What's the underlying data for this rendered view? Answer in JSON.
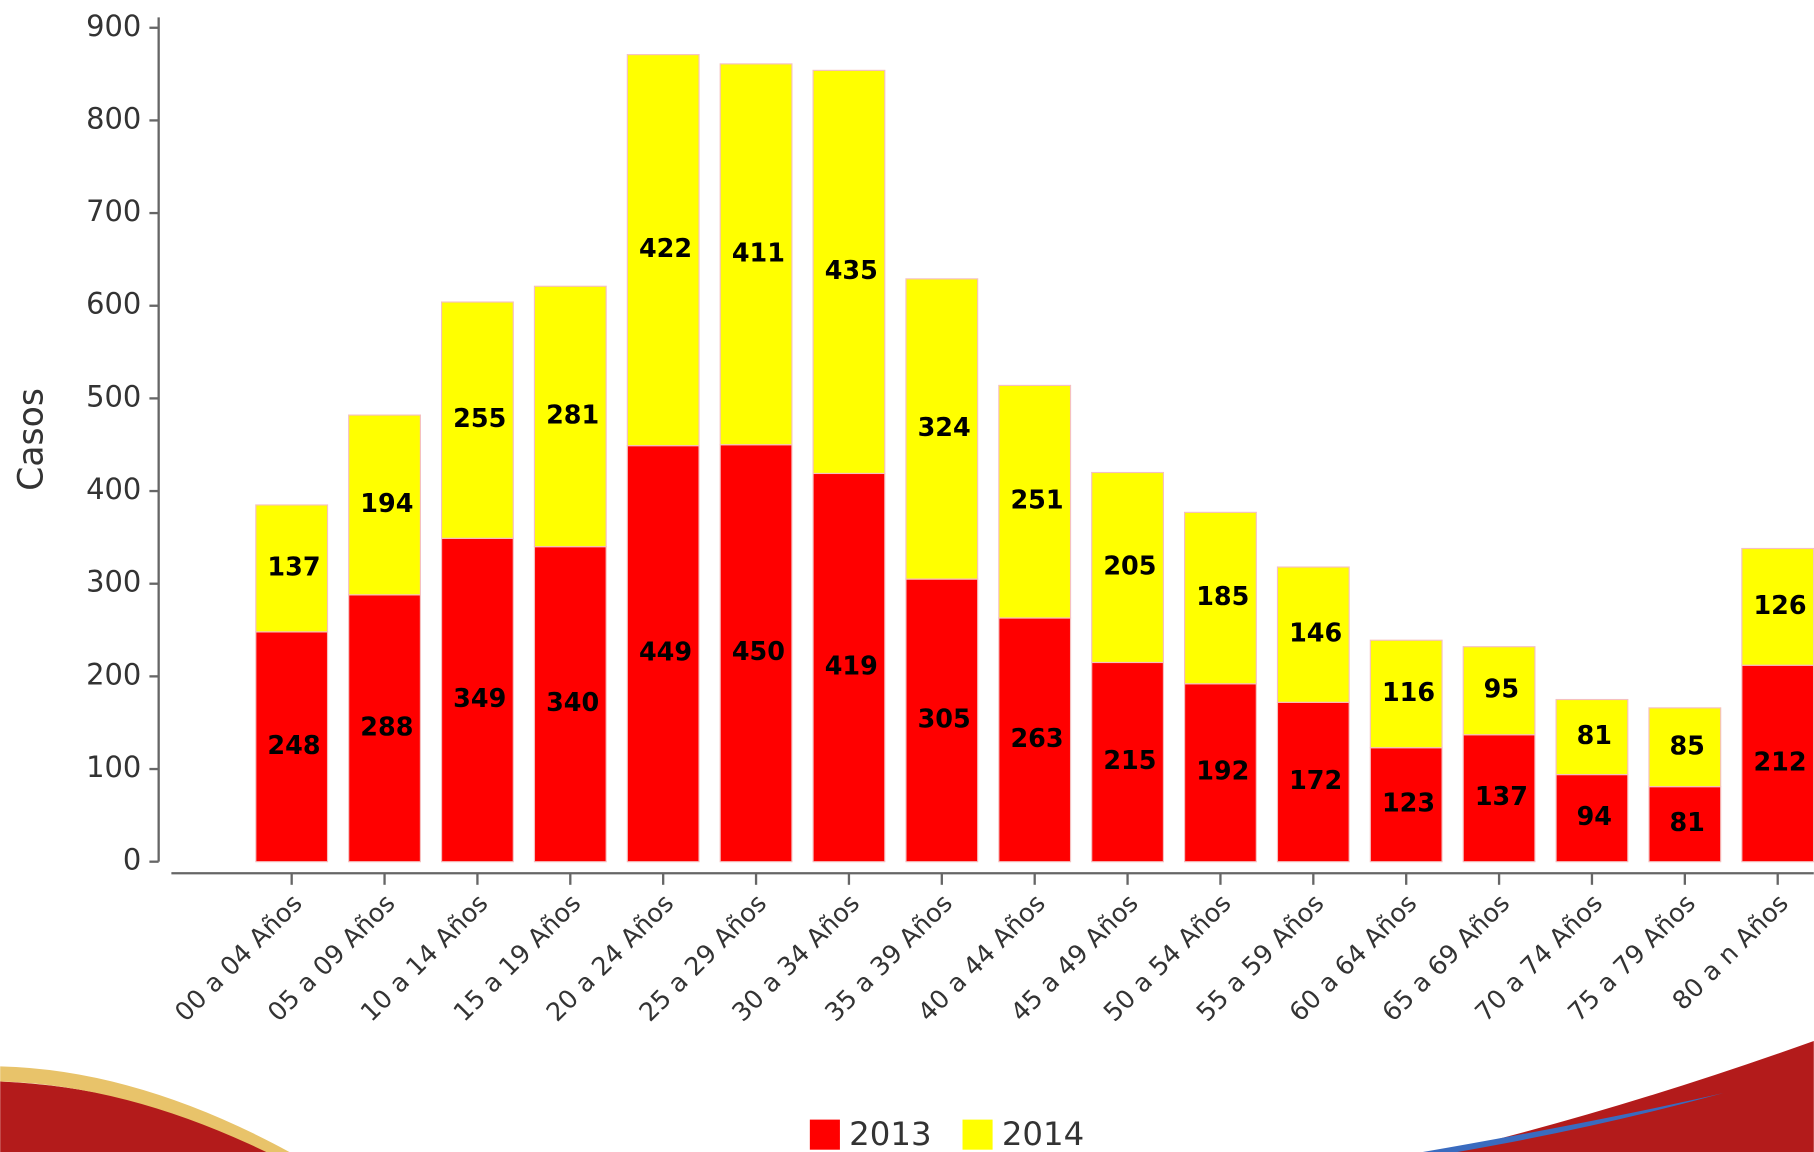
{
  "chart_data": {
    "type": "stacked_bar",
    "y_label": "Casos",
    "categories": [
      "00 a 04 Años",
      "05 a 09 Años",
      "10 a 14 Años",
      "15 a 19 Años",
      "20 a 24 Años",
      "25 a 29 Años",
      "30 a 34 Años",
      "35 a 39 Años",
      "40 a 44 Años",
      "45 a 49 Años",
      "50 a 54 Años",
      "55 a 59 Años",
      "60 a 64 Años",
      "65 a 69 Años",
      "70 a 74 Años",
      "75 a 79 Años",
      "80 a n Años"
    ],
    "series": [
      {
        "name": "2013",
        "color": "#ff0000",
        "values": [
          248,
          288,
          349,
          340,
          449,
          450,
          419,
          305,
          263,
          215,
          192,
          172,
          123,
          137,
          94,
          81,
          212
        ]
      },
      {
        "name": "2014",
        "color": "#ffff00",
        "values": [
          137,
          194,
          255,
          281,
          422,
          411,
          435,
          324,
          251,
          205,
          185,
          146,
          116,
          95,
          81,
          85,
          126
        ]
      }
    ],
    "ylim": [
      0,
      900
    ],
    "yticks": [
      0,
      100,
      200,
      300,
      400,
      500,
      600,
      700,
      800,
      900
    ],
    "legend": "bottom"
  }
}
